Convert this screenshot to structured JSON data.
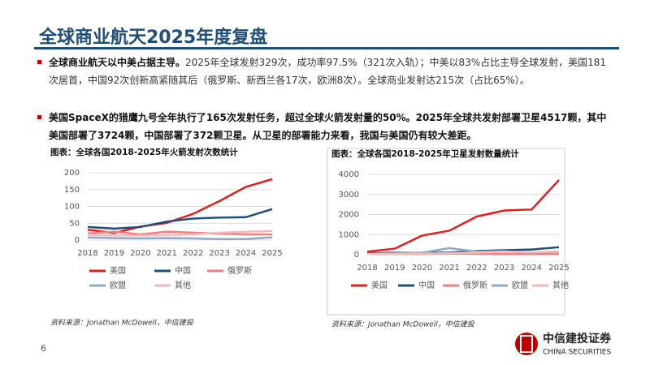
{
  "header": {
    "title": "全球商业航天2025年度复盘"
  },
  "bullets": [
    {
      "bold": "全球商业航天以中美占据主导。",
      "text": "2025年全球发射329次，成功率97.5%（321次入轨）；中美以83%占比主导全球发射，美国181次居首，中国92次创新高紧随其后（俄罗斯、新西兰各17次，欧洲8次）。全球商业发射达215次（占比65%）。"
    },
    {
      "bold": "美国SpaceX的猎鹰九号全年执行了165次发射任务，超过全球火箭发射量的50%。2025年全球共发射部署卫星4517颗，其中美国部署了3724颗，中国部署了372颗卫星。从卫星的部署能力来看，我国与美国仍有较大差距。",
      "text": ""
    }
  ],
  "chart_data": [
    {
      "type": "line",
      "title": "图表：全球各国2018-2025年火箭发射次数统计",
      "source": "资料来源：Jonathan McDowell，中信建投",
      "categories": [
        "2018",
        "2019",
        "2020",
        "2021",
        "2022",
        "2023",
        "2024",
        "2025"
      ],
      "ylim": [
        0,
        200
      ],
      "yticks": [
        0,
        50,
        100,
        150,
        200
      ],
      "grid": true,
      "series": [
        {
          "name": "美国",
          "color": "#e02020",
          "values": [
            31,
            21,
            40,
            51,
            78,
            116,
            158,
            181
          ]
        },
        {
          "name": "中国",
          "color": "#1f4e79",
          "values": [
            39,
            34,
            39,
            55,
            64,
            67,
            68,
            92
          ]
        },
        {
          "name": "俄罗斯",
          "color": "#f08080",
          "values": [
            20,
            25,
            17,
            25,
            22,
            19,
            17,
            17
          ]
        },
        {
          "name": "欧盟",
          "color": "#8fa8c8",
          "values": [
            8,
            6,
            5,
            6,
            5,
            3,
            3,
            8
          ]
        },
        {
          "name": "其他",
          "color": "#f4b8b8",
          "values": [
            16,
            14,
            14,
            15,
            17,
            22,
            25,
            27
          ]
        }
      ]
    },
    {
      "type": "line",
      "title": "图表：全球各国2018-2025年卫星发射数量统计",
      "source": "资料来源：Jonathan McDowell，中信建投",
      "categories": [
        "2018",
        "2019",
        "2020",
        "2021",
        "2022",
        "2023",
        "2024",
        "2025"
      ],
      "ylim": [
        0,
        4000
      ],
      "yticks": [
        0,
        1000,
        2000,
        3000,
        4000
      ],
      "grid": true,
      "series": [
        {
          "name": "美国",
          "color": "#e02020",
          "values": [
            150,
            300,
            950,
            1200,
            1900,
            2200,
            2250,
            3724
          ]
        },
        {
          "name": "中国",
          "color": "#1f4e79",
          "values": [
            80,
            90,
            90,
            110,
            180,
            220,
            260,
            372
          ]
        },
        {
          "name": "俄罗斯",
          "color": "#f08080",
          "values": [
            50,
            40,
            30,
            60,
            40,
            30,
            30,
            40
          ]
        },
        {
          "name": "欧盟",
          "color": "#8fa8c8",
          "values": [
            50,
            60,
            100,
            330,
            150,
            170,
            100,
            150
          ]
        },
        {
          "name": "其他",
          "color": "#f4b8b8",
          "values": [
            30,
            40,
            50,
            80,
            100,
            150,
            120,
            160
          ]
        }
      ]
    }
  ],
  "footer": {
    "page": "6",
    "logo": "中信建投证券",
    "logo_en": "CHINA SECURITIES"
  }
}
